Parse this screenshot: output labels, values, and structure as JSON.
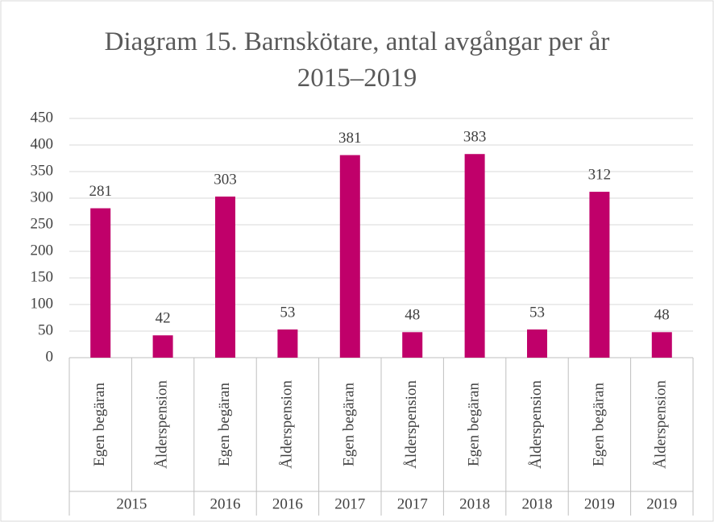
{
  "chart_data": {
    "type": "bar",
    "title": "Diagram 15. Barnskötare, antal avgångar per år 2015–2019",
    "categories": [
      "Egen begäran",
      "Ålderspension",
      "Egen begäran",
      "Ålderspension",
      "Egen begäran",
      "Ålderspension",
      "Egen begäran",
      "Ålderspension",
      "Egen begäran",
      "Ålderspension"
    ],
    "groups": [
      "2015",
      null,
      "2016",
      "2016",
      "2017",
      "2017",
      "2018",
      "2018",
      "2019",
      "2019"
    ],
    "values": [
      281,
      42,
      303,
      53,
      381,
      48,
      383,
      53,
      312,
      48
    ],
    "color": "#c0006a",
    "ylim": [
      0,
      450
    ],
    "yticks": [
      0,
      50,
      100,
      150,
      200,
      250,
      300,
      350,
      400,
      450
    ],
    "grid": true
  }
}
